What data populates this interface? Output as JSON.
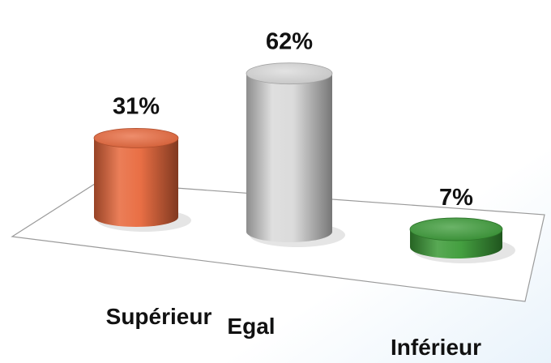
{
  "chart_data": {
    "type": "bar",
    "style": "3d-cylinder",
    "categories": [
      "Supérieur",
      "Egal",
      "Inférieur"
    ],
    "values": [
      31,
      62,
      7
    ],
    "value_labels": [
      "31%",
      "62%",
      "7%"
    ],
    "unit": "%",
    "ylim": [
      0,
      100
    ],
    "colors": [
      "#e8673b",
      "#d9d9d9",
      "#3a9a36"
    ],
    "grid": false,
    "legend": "none",
    "title": "",
    "xlabel": "",
    "ylabel": ""
  }
}
